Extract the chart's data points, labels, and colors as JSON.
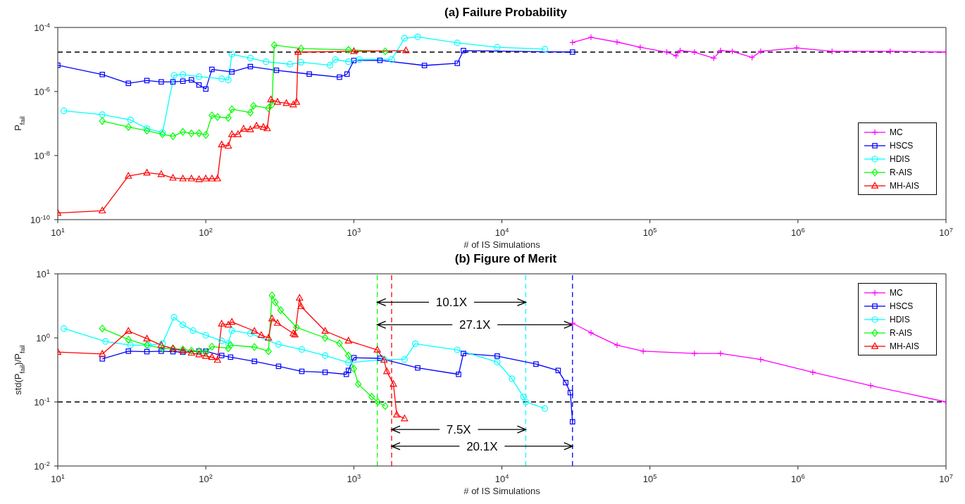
{
  "chart_data": [
    {
      "type": "line",
      "title": "(a) Failure Probability",
      "xlabel": "# of IS Simulations",
      "ylabel": "P$_{fail}$",
      "log": "xy",
      "legend": "right",
      "xlim": [
        10,
        10000000
      ],
      "xticks": [
        {
          "value": 10,
          "label": "10$^{1}$"
        },
        {
          "value": 100,
          "label": "10$^{2}$"
        },
        {
          "value": 1000,
          "label": "10$^{3}$"
        },
        {
          "value": 10000,
          "label": "10$^{4}$"
        },
        {
          "value": 100000,
          "label": "10$^{5}$"
        },
        {
          "value": 1000000,
          "label": "10$^{6}$"
        },
        {
          "value": 10000000,
          "label": "10$^{7}$"
        }
      ],
      "ylim": [
        1e-10,
        0.0001
      ],
      "yticks": [
        {
          "value": 1e-10,
          "label": "10$^{-10}$"
        },
        {
          "value": 1e-08,
          "label": "10$^{-8}$"
        },
        {
          "value": 1e-06,
          "label": "10$^{-6}$"
        },
        {
          "value": 0.0001,
          "label": "10$^{-4}$"
        }
      ],
      "ref_lines": [
        {
          "axis": "y",
          "value": 1.7e-05,
          "color": "#000000",
          "line_style": "dashed"
        }
      ],
      "series": [
        {
          "name": "MC",
          "color": "#ff00ff",
          "marker": "cross",
          "x": [
            30000,
            40000,
            60000,
            86000,
            130000,
            150000,
            160000,
            200000,
            270000,
            300000,
            360000,
            490000,
            560000,
            980000,
            1700000,
            4200000,
            10000000
          ],
          "values": [
            3.4e-05,
            4.9e-05,
            3.5e-05,
            2.4e-05,
            1.7e-05,
            1.3e-05,
            1.9e-05,
            1.7e-05,
            1.1e-05,
            1.9e-05,
            1.8e-05,
            1.15e-05,
            1.8e-05,
            2.3e-05,
            1.8e-05,
            1.8e-05,
            1.7e-05
          ]
        },
        {
          "name": "HSCS",
          "color": "#0000ff",
          "marker": "square",
          "x": [
            10,
            20,
            30,
            40,
            50,
            60,
            70,
            80,
            90,
            100,
            110,
            150,
            200,
            300,
            500,
            800,
            900,
            1000,
            1500,
            3000,
            5000,
            5500,
            30000
          ],
          "values": [
            6.6e-06,
            3.4e-06,
            1.8e-06,
            2.2e-06,
            2e-06,
            2e-06,
            2.1e-06,
            2.3e-06,
            1.6e-06,
            1.2e-06,
            4.9e-06,
            4.1e-06,
            6e-06,
            4.6e-06,
            3.5e-06,
            2.8e-06,
            3.5e-06,
            9.3e-06,
            9.4e-06,
            6.5e-06,
            7.6e-06,
            1.9e-05,
            1.7e-05
          ]
        },
        {
          "name": "HDIS",
          "color": "#00ffff",
          "marker": "circle",
          "x": [
            11,
            20,
            31,
            40,
            51,
            61,
            70,
            90,
            128,
            142,
            150,
            200,
            255,
            370,
            440,
            690,
            750,
            920,
            1090,
            1800,
            2200,
            2700,
            5000,
            9300,
            19500
          ],
          "values": [
            2.5e-07,
            1.9e-07,
            1.3e-07,
            7e-08,
            5.2e-08,
            3.2e-06,
            3.4e-06,
            2.9e-06,
            2.5e-06,
            2.3e-06,
            1.45e-05,
            1.1e-05,
            8.5e-06,
            7.1e-06,
            8.2e-06,
            6.6e-06,
            1e-05,
            8.5e-06,
            1e-05,
            1e-05,
            4.6e-05,
            5.1e-05,
            3.3e-05,
            2.4e-05,
            2.1e-05
          ]
        },
        {
          "name": "R-AIS",
          "color": "#00ff00",
          "marker": "diamond",
          "x": [
            20,
            30,
            40,
            51,
            60,
            70,
            80,
            90,
            100,
            110,
            120,
            142,
            150,
            200,
            210,
            265,
            280,
            290,
            440,
            920,
            1630
          ],
          "values": [
            1.2e-07,
            7.8e-08,
            6e-08,
            4.6e-08,
            4e-08,
            5.5e-08,
            4.9e-08,
            5e-08,
            4.4e-08,
            1.8e-07,
            1.6e-07,
            1.5e-07,
            2.8e-07,
            2.2e-07,
            3.6e-07,
            3e-07,
            3.9e-07,
            2.8e-05,
            2.2e-05,
            2e-05,
            1.8e-05
          ]
        },
        {
          "name": "MH-AIS",
          "color": "#ff0000",
          "marker": "triangle",
          "x": [
            10,
            20,
            30,
            40,
            50,
            60,
            70,
            80,
            90,
            100,
            110,
            120,
            128,
            142,
            150,
            165,
            180,
            200,
            220,
            245,
            260,
            275,
            305,
            350,
            390,
            410,
            420,
            1000,
            2250
          ],
          "values": [
            1.6e-10,
            1.9e-10,
            2.3e-09,
            2.9e-09,
            2.6e-09,
            2e-09,
            1.9e-09,
            1.9e-09,
            1.8e-09,
            1.9e-09,
            1.9e-09,
            1.9e-09,
            2.2e-08,
            2e-08,
            4.6e-08,
            4.6e-08,
            6.8e-08,
            6.5e-08,
            8.5e-08,
            7.7e-08,
            7e-08,
            5.6e-07,
            4.7e-07,
            4.3e-07,
            3.9e-07,
            4.7e-07,
            1.7e-05,
            1.8e-05,
            1.9e-05
          ]
        }
      ]
    },
    {
      "type": "line",
      "title": "(b) Figure of Merit",
      "xlabel": "# of IS Simulations",
      "ylabel": "std(P$_{fail}$)/P$_{fail}$",
      "log": "xy",
      "legend": "top right",
      "xlim": [
        10,
        10000000
      ],
      "xticks": [
        {
          "value": 10,
          "label": "10$^{1}$"
        },
        {
          "value": 100,
          "label": "10$^{2}$"
        },
        {
          "value": 1000,
          "label": "10$^{3}$"
        },
        {
          "value": 10000,
          "label": "10$^{4}$"
        },
        {
          "value": 100000,
          "label": "10$^{5}$"
        },
        {
          "value": 1000000,
          "label": "10$^{6}$"
        },
        {
          "value": 10000000,
          "label": "10$^{7}$"
        }
      ],
      "ylim": [
        0.01,
        10
      ],
      "yticks": [
        {
          "value": 0.01,
          "label": "10$^{-2}$"
        },
        {
          "value": 0.1,
          "label": "10$^{-1}$"
        },
        {
          "value": 1,
          "label": "10$^{0}$"
        },
        {
          "value": 10,
          "label": "10$^{1}$"
        }
      ],
      "ref_lines": [
        {
          "axis": "y",
          "value": 0.1,
          "color": "#000000",
          "line_style": "dashed"
        },
        {
          "axis": "x",
          "value": 1440,
          "color": "#00ff00",
          "line_style": "dashed"
        },
        {
          "axis": "x",
          "value": 1800,
          "color": "#ff0000",
          "line_style": "dashed"
        },
        {
          "axis": "x",
          "value": 14500,
          "color": "#00ffff",
          "line_style": "dashed"
        },
        {
          "axis": "x",
          "value": 30000,
          "color": "#0000ff",
          "line_style": "dashed"
        }
      ],
      "annotations": [
        "10.1X",
        "27.1X",
        "7.5X",
        "20.1X"
      ],
      "series": [
        {
          "name": "MC",
          "color": "#ff00ff",
          "marker": "cross",
          "x": [
            30000,
            40000,
            60000,
            90000,
            200000,
            300000,
            560000,
            1260000,
            3100000,
            10000000
          ],
          "values": [
            1.7,
            1.2,
            0.77,
            0.62,
            0.57,
            0.57,
            0.46,
            0.29,
            0.18,
            0.1
          ]
        },
        {
          "name": "HSCS",
          "color": "#0000ff",
          "marker": "square",
          "x": [
            20,
            30,
            40,
            50,
            60,
            70,
            90,
            100,
            128,
            147,
            213,
            310,
            445,
            640,
            890,
            920,
            1000,
            1500,
            2700,
            5100,
            5500,
            9300,
            17000,
            24000,
            27000,
            29000,
            30000
          ],
          "values": [
            0.47,
            0.62,
            0.61,
            0.62,
            0.61,
            0.6,
            0.62,
            0.62,
            0.53,
            0.5,
            0.43,
            0.36,
            0.3,
            0.29,
            0.27,
            0.31,
            0.49,
            0.48,
            0.34,
            0.27,
            0.57,
            0.52,
            0.39,
            0.31,
            0.2,
            0.14,
            0.049
          ]
        },
        {
          "name": "HDIS",
          "color": "#00ffff",
          "marker": "circle",
          "x": [
            11,
            21,
            31,
            41,
            51,
            61,
            70,
            82,
            100,
            128,
            142,
            150,
            200,
            310,
            445,
            640,
            920,
            1600,
            2200,
            2600,
            5000,
            9300,
            11700,
            14000,
            14500,
            19500
          ],
          "values": [
            1.4,
            0.88,
            0.77,
            0.77,
            0.82,
            2.1,
            1.6,
            1.3,
            1.1,
            0.9,
            0.82,
            1.3,
            1.17,
            0.79,
            0.66,
            0.53,
            0.41,
            0.46,
            0.46,
            0.81,
            0.65,
            0.42,
            0.23,
            0.12,
            0.1,
            0.079
          ]
        },
        {
          "name": "R-AIS",
          "color": "#00ff00",
          "marker": "diamond",
          "x": [
            20,
            30,
            40,
            51,
            60,
            70,
            80,
            90,
            100,
            110,
            142,
            147,
            213,
            265,
            280,
            295,
            320,
            410,
            640,
            800,
            920,
            1000,
            1070,
            1320,
            1450,
            1630
          ],
          "values": [
            1.4,
            0.94,
            0.77,
            0.69,
            0.68,
            0.66,
            0.63,
            0.62,
            0.6,
            0.73,
            0.69,
            0.77,
            0.72,
            0.62,
            4.6,
            3.6,
            2.7,
            1.46,
            1.0,
            0.82,
            0.53,
            0.33,
            0.19,
            0.12,
            0.1,
            0.086
          ]
        },
        {
          "name": "MH-AIS",
          "color": "#ff0000",
          "marker": "triangle",
          "x": [
            10,
            20,
            30,
            40,
            50,
            60,
            70,
            80,
            90,
            100,
            110,
            120,
            128,
            142,
            150,
            213,
            237,
            265,
            280,
            305,
            390,
            400,
            430,
            440,
            640,
            920,
            1440,
            1600,
            1670,
            1850,
            1950,
            2200
          ],
          "values": [
            0.6,
            0.56,
            1.28,
            0.97,
            0.77,
            0.68,
            0.63,
            0.58,
            0.55,
            0.52,
            0.5,
            0.45,
            1.66,
            1.6,
            1.77,
            1.28,
            1.1,
            1.0,
            2.0,
            1.7,
            1.17,
            1.12,
            4.2,
            3.1,
            1.28,
            0.9,
            0.65,
            0.45,
            0.3,
            0.19,
            0.063,
            0.055
          ]
        }
      ]
    }
  ]
}
